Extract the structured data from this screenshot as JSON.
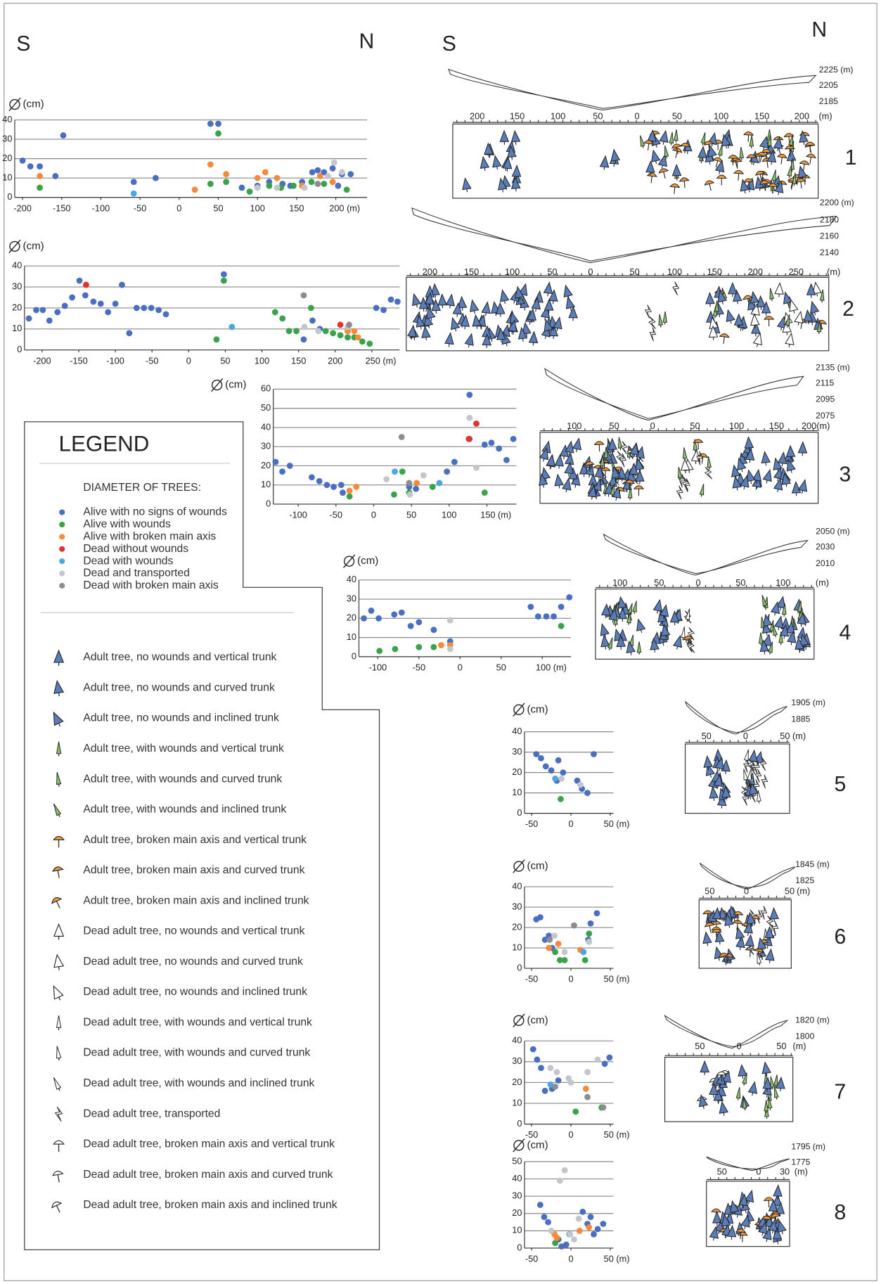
{
  "header": {
    "left_panel": [
      "S",
      "N"
    ],
    "right_panel": [
      "S",
      "N"
    ]
  },
  "legend": {
    "title": "LEGEND",
    "subtitle": "DIAMETER OF TREES:",
    "classes": [
      {
        "name": "Alive with no signs of wounds",
        "color": "#4a6fc0"
      },
      {
        "name": "Alive with wounds",
        "color": "#3aa34a"
      },
      {
        "name": "Alive with broken main axis",
        "color": "#f58a3c"
      },
      {
        "name": "Dead without wounds",
        "color": "#e0352b"
      },
      {
        "name": "Dead with wounds",
        "color": "#4da6e0"
      },
      {
        "name": "Dead and transported",
        "color": "#c3c7cc"
      },
      {
        "name": "Dead with broken main axis",
        "color": "#8a8d92"
      }
    ],
    "symbols": [
      "Adult tree, no wounds and vertical trunk",
      "Adult tree, no wounds and curved trunk",
      "Adult tree, no wounds and inclined trunk",
      "Adult tree, with wounds and vertical trunk",
      "Adult tree, with wounds and curved trunk",
      "Adult tree, with wounds and inclined trunk",
      "Adult tree, broken main axis and vertical trunk",
      "Adult tree, broken main axis and curved trunk",
      "Adult tree, broken main axis and inclined trunk",
      "Dead adult tree, no wounds and vertical trunk",
      "Dead adult tree, no wounds and curved trunk",
      "Dead adult tree, no wounds and inclined trunk",
      "Dead adult tree, with wounds and vertical trunk",
      "Dead adult tree, with wounds and curved trunk",
      "Dead adult tree, with wounds and inclined trunk",
      "Dead adult tree, transported",
      "Dead adult tree, broken main axis and vertical trunk",
      "Dead adult tree, broken main axis and curved trunk",
      "Dead adult tree, broken main axis and inclined trunk"
    ]
  },
  "chart_data": [
    {
      "type": "scatter",
      "ylabel": "(cm)",
      "grid": true,
      "xlim": [
        -210,
        240
      ],
      "ylim": [
        0,
        40
      ],
      "xticks": [
        -200,
        -150,
        -100,
        -50,
        0,
        50,
        100,
        150,
        {
          "value": 200,
          "label": "200 (m)"
        }
      ],
      "yticks": [
        0,
        10,
        20,
        30,
        40
      ],
      "series": [
        {
          "x": [
            -200,
            -190,
            -178,
            -158,
            -148,
            -58,
            -30,
            40,
            50,
            80,
            100,
            115,
            132,
            142,
            157,
            170,
            177,
            185,
            196,
            208,
            219,
            203
          ],
          "y": [
            19,
            16,
            16,
            11,
            32,
            8,
            10,
            38,
            38,
            5,
            6,
            8,
            7,
            6,
            8,
            13,
            14,
            13,
            15,
            12,
            12,
            6
          ]
        },
        {
          "x": [
            -178,
            50,
            40,
            60,
            90,
            115,
            130,
            146,
            169,
            185,
            214
          ],
          "y": [
            5,
            33,
            7,
            8,
            3,
            6,
            5,
            6,
            8,
            7,
            4
          ]
        },
        {
          "x": [
            -178,
            20,
            40,
            60,
            100,
            110,
            125,
            157,
            180,
            196
          ],
          "y": [
            11,
            4,
            17,
            12,
            10,
            13,
            10,
            6,
            11,
            8
          ]
        },
        {
          "x": [],
          "y": []
        },
        {
          "x": [
            -58
          ],
          "y": [
            2
          ]
        },
        {
          "x": [
            100,
            125,
            160,
            198,
            208,
            190
          ],
          "y": [
            5,
            5,
            5,
            18,
            13,
            11
          ]
        },
        {
          "x": [
            177
          ],
          "y": [
            7
          ]
        }
      ]
    },
    {
      "type": "scatter",
      "ylabel": "(cm)",
      "grid": true,
      "xlim": [
        -224,
        288
      ],
      "ylim": [
        0,
        40
      ],
      "xticks": [
        -200,
        -150,
        -100,
        -50,
        0,
        50,
        100,
        150,
        200,
        {
          "value": 250,
          "label": "250 (m)"
        }
      ],
      "yticks": [
        0,
        10,
        20,
        30,
        40
      ],
      "series": [
        {
          "x": [
            -218,
            -208,
            -199,
            -190,
            -179,
            -169,
            -159,
            -149,
            -141,
            -130,
            -120,
            -110,
            -100,
            -91,
            -81,
            -71,
            -61,
            -51,
            -41,
            -31,
            48,
            157,
            169,
            179,
            256,
            266,
            276,
            285
          ],
          "y": [
            15,
            19,
            19,
            14,
            18,
            21,
            25,
            33,
            26,
            23,
            22,
            18,
            22,
            31,
            8,
            20,
            20,
            20,
            19,
            17,
            36,
            5,
            14,
            10,
            20,
            19,
            24,
            23
          ]
        },
        {
          "x": [
            48,
            38,
            118,
            128,
            137,
            147,
            167,
            187,
            197,
            207,
            217,
            237,
            247,
            226
          ],
          "y": [
            33,
            5,
            18,
            15,
            9,
            9,
            20,
            9,
            8,
            7,
            6,
            4,
            3,
            6
          ]
        },
        {
          "x": [
            226,
            231,
            217
          ],
          "y": [
            9,
            6,
            9
          ]
        },
        {
          "x": [
            -140,
            207
          ],
          "y": [
            31,
            12
          ]
        },
        {
          "x": [
            59
          ],
          "y": [
            11
          ]
        },
        {
          "x": [
            158,
            177,
            217
          ],
          "y": [
            11,
            9,
            11
          ]
        },
        {
          "x": [
            157,
            219
          ],
          "y": [
            26,
            12
          ]
        }
      ]
    },
    {
      "type": "scatter",
      "ylabel": "(cm)",
      "grid": true,
      "xlim": [
        -133,
        189
      ],
      "ylim": [
        0,
        60
      ],
      "xticks": [
        -100,
        -50,
        0,
        50,
        100,
        {
          "value": 150,
          "label": "150 (m)"
        }
      ],
      "yticks": [
        0,
        10,
        20,
        30,
        40,
        50,
        60
      ],
      "series": [
        {
          "x": [
            -130,
            -121,
            -111,
            -82,
            -72,
            -62,
            -53,
            -43,
            -41,
            47,
            56,
            97,
            107,
            127,
            127,
            147,
            156,
            166,
            176,
            185
          ],
          "y": [
            22,
            17,
            20,
            14,
            12,
            10,
            9,
            10,
            6,
            9,
            8,
            17,
            22,
            57,
            34,
            31,
            32,
            29,
            23,
            34
          ]
        },
        {
          "x": [
            -32,
            27,
            38,
            47,
            78,
            147
          ],
          "y": [
            4,
            5,
            17,
            6,
            9,
            6
          ]
        },
        {
          "x": [
            -32,
            -23,
            57
          ],
          "y": [
            7,
            9,
            11
          ]
        },
        {
          "x": [
            126,
            136
          ],
          "y": [
            34,
            42
          ]
        },
        {
          "x": [
            28,
            87
          ],
          "y": [
            17,
            11
          ]
        },
        {
          "x": [
            17,
            66,
            48,
            127,
            136
          ],
          "y": [
            13,
            15,
            5,
            45,
            19
          ]
        },
        {
          "x": [
            37,
            47
          ],
          "y": [
            35,
            11
          ]
        }
      ]
    },
    {
      "type": "scatter",
      "ylabel": "(cm)",
      "grid": true,
      "xlim": [
        -123,
        135
      ],
      "ylim": [
        0,
        40
      ],
      "xticks": [
        -100,
        -50,
        0,
        50,
        {
          "value": 100,
          "label": "100 (m)"
        }
      ],
      "yticks": [
        0,
        10,
        20,
        30,
        40
      ],
      "series": [
        {
          "x": [
            -117,
            -108,
            -99,
            -80,
            -71,
            -60,
            -50,
            86,
            95,
            105,
            114,
            123,
            133,
            -32,
            -12
          ],
          "y": [
            20,
            24,
            20,
            22,
            23,
            16,
            18,
            26,
            21,
            21,
            21,
            26,
            31,
            14,
            8
          ]
        },
        {
          "x": [
            -98,
            -79,
            -50,
            -32,
            123
          ],
          "y": [
            3,
            4,
            5,
            5,
            16
          ]
        },
        {
          "x": [
            -23,
            -12
          ],
          "y": [
            6,
            6
          ]
        },
        {
          "x": [],
          "y": []
        },
        {
          "x": [],
          "y": []
        },
        {
          "x": [
            -12,
            -12
          ],
          "y": [
            19,
            4
          ]
        },
        {
          "x": [],
          "y": []
        }
      ]
    },
    {
      "type": "scatter",
      "ylabel": "(cm)",
      "grid": true,
      "xlim": [
        -59,
        54
      ],
      "ylim": [
        0,
        40
      ],
      "xticks": [
        -50,
        0,
        {
          "value": 50,
          "label": "50 (m)"
        }
      ],
      "yticks": [
        0,
        10,
        20,
        30,
        40
      ],
      "series": [
        {
          "x": [
            -44,
            -38,
            -32,
            -25,
            -16,
            -10,
            8,
            14,
            21,
            29,
            -18
          ],
          "y": [
            29,
            27,
            23,
            21,
            26,
            20,
            16,
            12,
            10,
            29,
            16
          ]
        },
        {
          "x": [
            -13
          ],
          "y": [
            7
          ]
        },
        {
          "x": [],
          "y": []
        },
        {
          "x": [],
          "y": []
        },
        {
          "x": [
            -20
          ],
          "y": [
            17
          ]
        },
        {
          "x": [
            -12,
            12
          ],
          "y": [
            17,
            14
          ]
        },
        {
          "x": [],
          "y": []
        }
      ]
    },
    {
      "type": "scatter",
      "ylabel": "(cm)",
      "grid": true,
      "xlim": [
        -59,
        54
      ],
      "ylim": [
        0,
        40
      ],
      "xticks": [
        -50,
        0,
        {
          "value": 50,
          "label": "50 (m)"
        }
      ],
      "yticks": [
        0,
        10,
        20,
        30,
        40
      ],
      "series": [
        {
          "x": [
            -44,
            -39,
            -33,
            -28,
            -24,
            25,
            33,
            22
          ],
          "y": [
            24,
            25,
            14,
            16,
            10,
            22,
            27,
            14
          ]
        },
        {
          "x": [
            -20,
            -14,
            -8,
            18,
            23
          ],
          "y": [
            8,
            4,
            4,
            4,
            17
          ]
        },
        {
          "x": [
            -16,
            12,
            -28
          ],
          "y": [
            12,
            9,
            10
          ]
        },
        {
          "x": [],
          "y": []
        },
        {
          "x": [
            16
          ],
          "y": [
            8
          ]
        },
        {
          "x": [
            -21,
            -8,
            23
          ],
          "y": [
            16,
            8,
            13
          ]
        },
        {
          "x": [
            4,
            -27
          ],
          "y": [
            21,
            14
          ]
        }
      ]
    },
    {
      "type": "scatter",
      "ylabel": "(cm)",
      "grid": true,
      "xlim": [
        -59,
        54
      ],
      "ylim": [
        0,
        40
      ],
      "xticks": [
        -50,
        0,
        {
          "value": 50,
          "label": "50 (m)"
        }
      ],
      "yticks": [
        0,
        10,
        20,
        30,
        40
      ],
      "series": [
        {
          "x": [
            -48,
            -43,
            -38,
            -33,
            -24,
            -16,
            43,
            49
          ],
          "y": [
            36,
            31,
            27,
            16,
            17,
            21,
            29,
            32
          ]
        },
        {
          "x": [
            6,
            39
          ],
          "y": [
            6,
            8
          ]
        },
        {
          "x": [
            19
          ],
          "y": [
            17
          ]
        },
        {
          "x": [],
          "y": []
        },
        {
          "x": [
            -26
          ],
          "y": [
            19
          ]
        },
        {
          "x": [
            -26,
            -18,
            -3,
            21,
            34,
            0
          ],
          "y": [
            27,
            25,
            22,
            25,
            31,
            20
          ]
        },
        {
          "x": [
            -20,
            21,
            41
          ],
          "y": [
            18,
            13,
            8
          ]
        }
      ]
    },
    {
      "type": "scatter",
      "ylabel": "(cm)",
      "grid": true,
      "xlim": [
        -59,
        54
      ],
      "ylim": [
        0,
        50
      ],
      "xticks": [
        -50,
        0,
        {
          "value": 50,
          "label": "50 (m)"
        }
      ],
      "yticks": [
        0,
        10,
        20,
        30,
        40,
        50
      ],
      "series": [
        {
          "x": [
            -39,
            -34,
            -29,
            -16,
            -12,
            -6,
            15,
            21,
            29,
            34,
            41,
            25
          ],
          "y": [
            25,
            18,
            15,
            5,
            1,
            2,
            21,
            14,
            8,
            11,
            14,
            18
          ]
        },
        {
          "x": [
            -20
          ],
          "y": [
            3
          ]
        },
        {
          "x": [
            -21,
            -18,
            11,
            23
          ],
          "y": [
            8,
            6,
            10,
            12
          ]
        },
        {
          "x": [],
          "y": []
        },
        {
          "x": [
            -2
          ],
          "y": [
            8
          ]
        },
        {
          "x": [
            -14,
            -8,
            -1,
            10,
            -25,
            4
          ],
          "y": [
            39,
            45,
            8,
            17,
            10,
            5
          ]
        },
        {
          "x": [],
          "y": []
        }
      ]
    }
  ],
  "profiles": [
    {
      "number": "1",
      "elevations": [
        "2225 (m)",
        "2205",
        "2185"
      ],
      "distance_labels": [
        "200",
        "150",
        "100",
        "50",
        "0",
        "50",
        "100",
        "150",
        "200",
        "(m)"
      ]
    },
    {
      "number": "2",
      "elevations": [
        "2200 (m)",
        "2180",
        "2160",
        "2140"
      ],
      "distance_labels": [
        "200",
        "150",
        "100",
        "50",
        "0",
        "50",
        "100",
        "150",
        "200",
        "250",
        "(m)"
      ]
    },
    {
      "number": "3",
      "elevations": [
        "2135 (m)",
        "2115",
        "2095",
        "2075"
      ],
      "distance_labels": [
        "100",
        "50",
        "0",
        "50",
        "100",
        "150",
        "200(m)"
      ]
    },
    {
      "number": "4",
      "elevations": [
        "2050 (m)",
        "2030",
        "2010"
      ],
      "distance_labels": [
        "100",
        "50",
        "0",
        "50",
        "100",
        "(m)"
      ]
    },
    {
      "number": "5",
      "elevations": [
        "1905 (m)",
        "1885"
      ],
      "distance_labels": [
        "50",
        "0",
        "50 (m)"
      ]
    },
    {
      "number": "6",
      "elevations": [
        "1845 (m)",
        "1825"
      ],
      "distance_labels": [
        "50",
        "0",
        "50",
        "(m)"
      ]
    },
    {
      "number": "7",
      "elevations": [
        "1820 (m)",
        "1800"
      ],
      "distance_labels": [
        "50",
        "0",
        "50",
        "(m)"
      ]
    },
    {
      "number": "8",
      "elevations": [
        "1795 (m)",
        "1775"
      ],
      "distance_labels": [
        "50",
        "0",
        "30",
        "(m)"
      ]
    }
  ]
}
